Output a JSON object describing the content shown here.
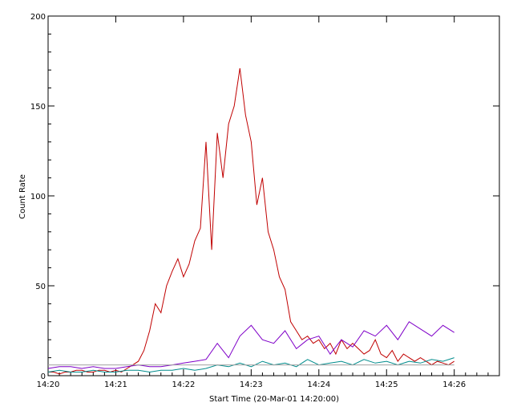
{
  "chart_data": {
    "type": "line",
    "xlabel": "Start Time (20-Mar-01 14:20:00)",
    "ylabel": "Count Rate",
    "xlim": [
      "14:20:00",
      "14:26:40"
    ],
    "ylim": [
      0,
      200
    ],
    "x_ticks": [
      "14:20",
      "14:21",
      "14:22",
      "14:23",
      "14:24",
      "14:25",
      "14:26"
    ],
    "y_ticks": [
      0,
      50,
      100,
      150,
      200
    ],
    "grid": false,
    "legend": "none",
    "x_unit": "seconds after 14:20:00",
    "series": [
      {
        "color": "#c00000",
        "x": [
          0,
          5,
          10,
          15,
          20,
          25,
          30,
          35,
          40,
          45,
          50,
          55,
          60,
          65,
          70,
          75,
          80,
          85,
          90,
          95,
          100,
          105,
          110,
          115,
          120,
          125,
          130,
          135,
          140,
          145,
          150,
          155,
          160,
          165,
          170,
          175,
          180,
          185,
          190,
          195,
          200,
          205,
          210,
          215,
          220,
          225,
          230,
          235,
          240,
          245,
          250,
          255,
          260,
          265,
          270,
          275,
          280,
          285,
          290,
          295,
          300,
          305,
          310,
          315,
          320,
          325,
          330,
          335,
          340,
          345,
          350,
          355,
          360
        ],
        "values": [
          2,
          2,
          1,
          2,
          2,
          3,
          3,
          2,
          2,
          3,
          3,
          2,
          3,
          2,
          4,
          6,
          8,
          14,
          25,
          40,
          35,
          50,
          58,
          65,
          55,
          62,
          75,
          82,
          130,
          70,
          135,
          110,
          140,
          150,
          171,
          145,
          130,
          95,
          110,
          80,
          70,
          55,
          48,
          30,
          25,
          20,
          22,
          18,
          20,
          15,
          18,
          12,
          20,
          15,
          18,
          15,
          12,
          14,
          20,
          12,
          10,
          14,
          8,
          12,
          10,
          8,
          10,
          8,
          6,
          8,
          7,
          6,
          8
        ]
      },
      {
        "color": "#7f00c8",
        "x": [
          0,
          10,
          20,
          30,
          40,
          50,
          60,
          70,
          80,
          90,
          100,
          110,
          120,
          130,
          140,
          150,
          160,
          170,
          180,
          190,
          200,
          210,
          220,
          230,
          240,
          250,
          260,
          270,
          280,
          290,
          300,
          310,
          320,
          330,
          340,
          350,
          360
        ],
        "values": [
          4,
          5,
          5,
          4,
          5,
          4,
          4,
          5,
          6,
          5,
          5,
          6,
          7,
          8,
          9,
          18,
          10,
          22,
          28,
          20,
          18,
          25,
          15,
          20,
          22,
          12,
          20,
          16,
          25,
          22,
          28,
          20,
          30,
          26,
          22,
          28,
          24
        ]
      },
      {
        "color": "#008c8c",
        "x": [
          0,
          10,
          20,
          30,
          40,
          50,
          60,
          70,
          80,
          90,
          100,
          110,
          120,
          130,
          140,
          150,
          160,
          170,
          180,
          190,
          200,
          210,
          220,
          230,
          240,
          250,
          260,
          270,
          280,
          290,
          300,
          310,
          320,
          330,
          340,
          350,
          360
        ],
        "values": [
          2,
          3,
          2,
          2,
          3,
          2,
          2,
          3,
          3,
          2,
          3,
          3,
          4,
          3,
          4,
          6,
          5,
          7,
          5,
          8,
          6,
          7,
          5,
          9,
          6,
          7,
          8,
          6,
          9,
          7,
          8,
          6,
          8,
          7,
          9,
          8,
          10
        ]
      },
      {
        "color": "#a0a0a0",
        "x": [
          0,
          360
        ],
        "values": [
          6,
          6
        ]
      }
    ]
  }
}
